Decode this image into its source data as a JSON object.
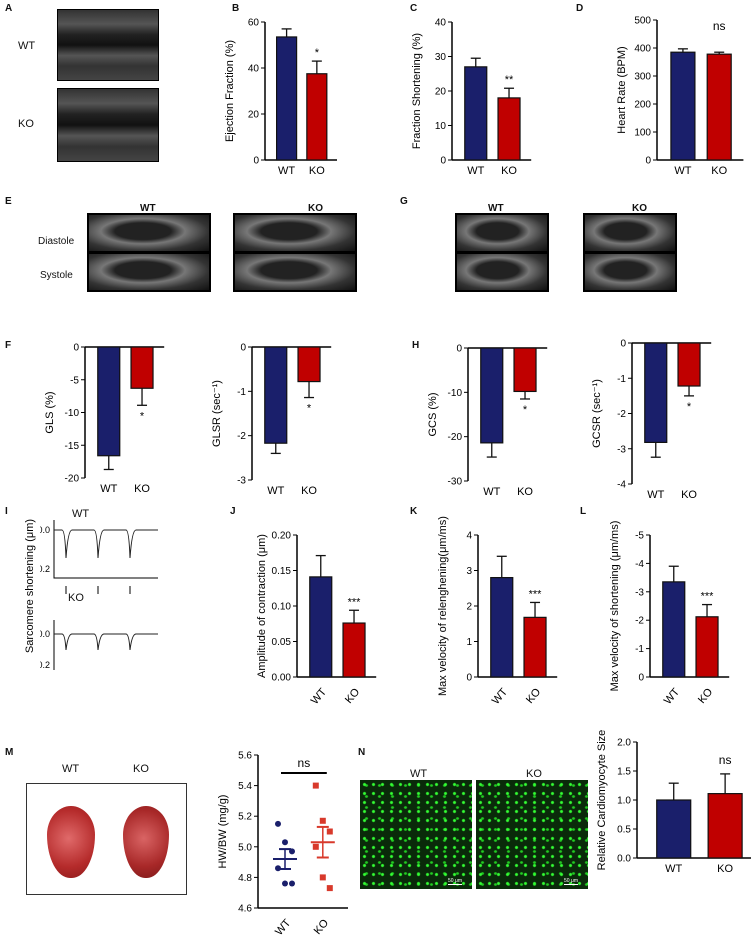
{
  "panel_letters": {
    "A": "A",
    "B": "B",
    "C": "C",
    "D": "D",
    "E": "E",
    "F": "F",
    "G": "G",
    "H": "H",
    "I": "I",
    "J": "J",
    "K": "K",
    "L": "L",
    "M": "M",
    "N": "N"
  },
  "groups": {
    "wt": "WT",
    "ko": "KO"
  },
  "colors": {
    "wt": "#1a1f6b",
    "ko": "#c00000"
  },
  "panel_e": {
    "rows": [
      "Diastole",
      "Systole"
    ]
  },
  "panel_n": {
    "scale_bar": "50 μm"
  },
  "panel_i": {
    "ylabel": "Sarcomere shortening (μm)",
    "ticks": [
      "0.0",
      "0.2"
    ]
  },
  "chart_data": [
    {
      "id": "B",
      "type": "bar",
      "title": "",
      "xlabel": "",
      "ylabel": "Ejection Fraction (%)",
      "categories": [
        "WT",
        "KO"
      ],
      "values": [
        53.5,
        37.5
      ],
      "errors": [
        3.5,
        5.5
      ],
      "ylim": [
        0,
        60
      ],
      "ticks": [
        0,
        20,
        40,
        60
      ],
      "significance": "*"
    },
    {
      "id": "C",
      "type": "bar",
      "title": "",
      "xlabel": "",
      "ylabel": "Fraction Shortening (%)",
      "categories": [
        "WT",
        "KO"
      ],
      "values": [
        27,
        18
      ],
      "errors": [
        2.5,
        2.8
      ],
      "ylim": [
        0,
        40
      ],
      "ticks": [
        0,
        10,
        20,
        30,
        40
      ],
      "significance": "**"
    },
    {
      "id": "D",
      "type": "bar",
      "title": "",
      "xlabel": "",
      "ylabel": "Heart Rate (BPM)",
      "categories": [
        "WT",
        "KO"
      ],
      "values": [
        385,
        378
      ],
      "errors": [
        12,
        7
      ],
      "ylim": [
        0,
        500
      ],
      "ticks": [
        0,
        100,
        200,
        300,
        400,
        500
      ],
      "significance": "ns"
    },
    {
      "id": "F1",
      "type": "bar",
      "title": "",
      "xlabel": "",
      "ylabel": "GLS (%)",
      "categories": [
        "WT",
        "KO"
      ],
      "values": [
        -16.6,
        -6.3
      ],
      "errors": [
        2.1,
        2.6
      ],
      "ylim": [
        -20,
        0
      ],
      "ticks": [
        -20,
        -15,
        -10,
        -5,
        0
      ],
      "significance": "*"
    },
    {
      "id": "F2",
      "type": "bar",
      "title": "",
      "xlabel": "",
      "ylabel": "GLSR (sec⁻¹)",
      "categories": [
        "WT",
        "KO"
      ],
      "values": [
        -2.17,
        -0.78
      ],
      "errors": [
        0.23,
        0.36
      ],
      "ylim": [
        -3,
        0
      ],
      "ticks": [
        -3,
        -2,
        -1,
        0
      ],
      "significance": "*"
    },
    {
      "id": "H1",
      "type": "bar",
      "title": "",
      "xlabel": "",
      "ylabel": "GCS (%)",
      "categories": [
        "WT",
        "KO"
      ],
      "values": [
        -21.4,
        -9.8
      ],
      "errors": [
        3.2,
        1.7
      ],
      "ylim": [
        -30,
        0
      ],
      "ticks": [
        -30,
        -20,
        -10,
        0
      ],
      "significance": "*"
    },
    {
      "id": "H2",
      "type": "bar",
      "title": "",
      "xlabel": "",
      "ylabel": "GCSR (sec⁻¹)",
      "categories": [
        "WT",
        "KO"
      ],
      "values": [
        -2.82,
        -1.22
      ],
      "errors": [
        0.42,
        0.28
      ],
      "ylim": [
        -4,
        0
      ],
      "ticks": [
        -4,
        -3,
        -2,
        -1,
        0
      ],
      "significance": "*"
    },
    {
      "id": "J",
      "type": "bar",
      "title": "",
      "xlabel": "",
      "ylabel": "Amplitude of contraction (μm)",
      "categories": [
        "WT",
        "KO"
      ],
      "values": [
        0.141,
        0.076
      ],
      "errors": [
        0.03,
        0.018
      ],
      "ylim": [
        0,
        0.2
      ],
      "ticks": [
        "0.00",
        "0.05",
        "0.10",
        "0.15",
        "0.20"
      ],
      "significance": "***"
    },
    {
      "id": "K",
      "type": "bar",
      "title": "",
      "xlabel": "",
      "ylabel": "Max velocity of relenghening(μm/ms)",
      "categories": [
        "WT",
        "KO"
      ],
      "values": [
        2.8,
        1.68
      ],
      "errors": [
        0.6,
        0.42
      ],
      "ylim": [
        0,
        4
      ],
      "ticks": [
        0,
        1,
        2,
        3,
        4
      ],
      "significance": "***"
    },
    {
      "id": "L",
      "type": "bar",
      "title": "",
      "xlabel": "",
      "ylabel": "Max velocity of shortening (μm/ms)",
      "categories": [
        "WT",
        "KO"
      ],
      "values": [
        -3.35,
        -2.12
      ],
      "errors": [
        0.55,
        0.43
      ],
      "ylim": [
        0,
        -5
      ],
      "ticks": [
        0,
        -1,
        -2,
        -3,
        -4,
        -5
      ],
      "significance": "***"
    },
    {
      "id": "M",
      "type": "scatter",
      "title": "",
      "xlabel": "",
      "ylabel": "HW/BW (mg/g)",
      "categories": [
        "WT",
        "KO"
      ],
      "points": [
        [
          5.15,
          5.03,
          4.97,
          4.86,
          4.76,
          4.76
        ],
        [
          5.4,
          5.17,
          5.1,
          5.0,
          4.8,
          4.73
        ]
      ],
      "means": [
        4.92,
        5.03
      ],
      "errors": [
        0.065,
        0.1
      ],
      "ylim": [
        4.6,
        5.6
      ],
      "ticks": [
        "4.6",
        "4.8",
        "5.0",
        "5.2",
        "5.4",
        "5.6"
      ],
      "significance": "ns"
    },
    {
      "id": "N",
      "type": "bar",
      "title": "",
      "xlabel": "",
      "ylabel": "Relative Cardiomyocyte Size",
      "categories": [
        "WT",
        "KO"
      ],
      "values": [
        1.0,
        1.11
      ],
      "errors": [
        0.29,
        0.34
      ],
      "ylim": [
        0,
        2
      ],
      "ticks": [
        "0.0",
        "0.5",
        "1.0",
        "1.5",
        "2.0"
      ],
      "significance": "ns"
    }
  ]
}
